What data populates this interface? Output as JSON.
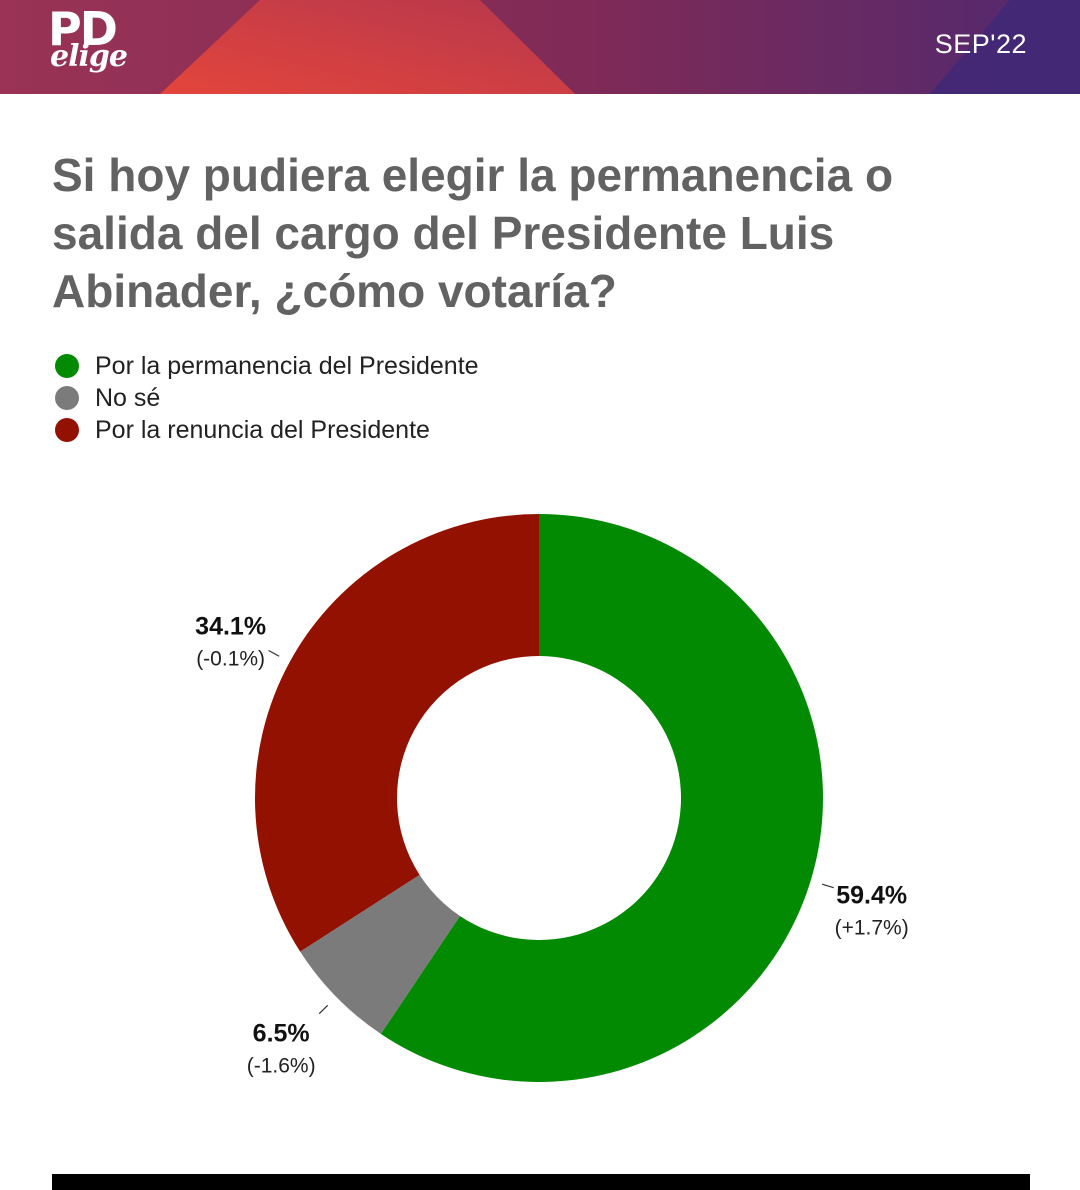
{
  "header": {
    "logo_text": "PD",
    "logo_subtext": "elige",
    "date": "SEP'22",
    "colors": {
      "left": "#9a3355",
      "accent": "#e0453d",
      "right": "#4a2a78"
    }
  },
  "chart_data": {
    "type": "pie",
    "donut": true,
    "title": "Si hoy pudiera elegir la permanencia o salida del cargo del Presidente Luis Abinader, ¿cómo votaría?",
    "legend_position": "top-left",
    "slices": [
      {
        "name": "Por la permanencia del Presidente",
        "value": 59.4,
        "label": "59.4%",
        "change": "(+1.7%)",
        "color": "#028a02"
      },
      {
        "name": "No sé",
        "value": 6.5,
        "label": "6.5%",
        "change": "(-1.6%)",
        "color": "#7b7b7b"
      },
      {
        "name": "Por la renuncia del Presidente",
        "value": 34.1,
        "label": "34.1%",
        "change": "(-0.1%)",
        "color": "#931100"
      }
    ]
  }
}
